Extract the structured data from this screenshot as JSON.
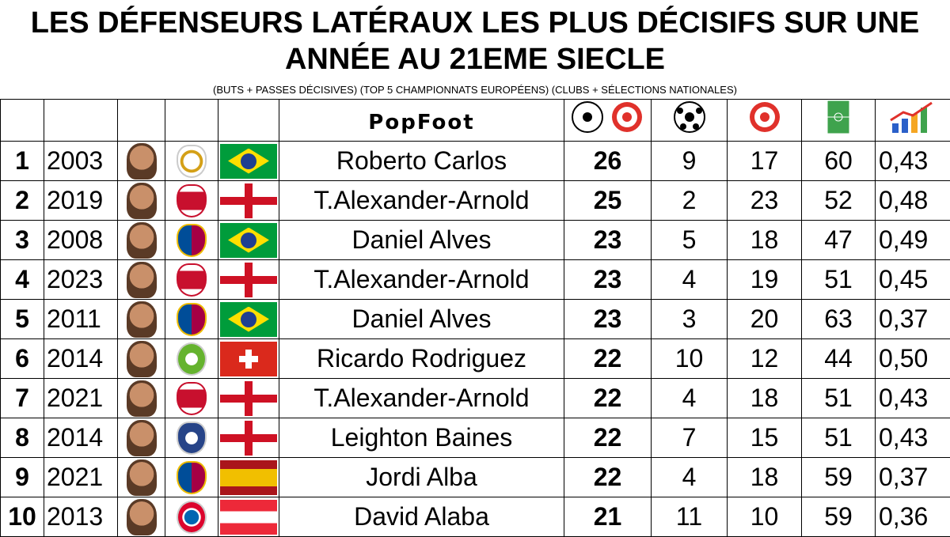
{
  "header": {
    "title": "LES DÉFENSEURS LATÉRAUX LES PLUS DÉCISIFS SUR UNE ANNÉE AU 21EME SIECLE",
    "subtitle": "(BUTS + PASSES DÉCISIVES) (TOP 5 CHAMPIONNATS EUROPÉENS) (CLUBS + SÉLECTIONS NATIONALES)",
    "brand": "PopFoot"
  },
  "table": {
    "rows": [
      [
        1,
        2003,
        "Roberto Carlos",
        26,
        9,
        17,
        60,
        "0,43"
      ],
      [
        2,
        2019,
        "T.Alexander-Arnold",
        25,
        2,
        23,
        52,
        "0,48"
      ],
      [
        3,
        2008,
        "Daniel Alves",
        23,
        5,
        18,
        47,
        "0,49"
      ],
      [
        4,
        2023,
        "T.Alexander-Arnold",
        23,
        4,
        19,
        51,
        "0,45"
      ],
      [
        5,
        2011,
        "Daniel Alves",
        23,
        3,
        20,
        63,
        "0,37"
      ],
      [
        6,
        2014,
        "Ricardo Rodriguez",
        22,
        10,
        12,
        44,
        "0,50"
      ],
      [
        7,
        2021,
        "T.Alexander-Arnold",
        22,
        4,
        18,
        51,
        "0,43"
      ],
      [
        8,
        2014,
        "Leighton Baines",
        22,
        7,
        15,
        51,
        "0,43"
      ],
      [
        9,
        2021,
        "Jordi Alba",
        22,
        4,
        18,
        59,
        "0,37"
      ],
      [
        10,
        2013,
        "David Alaba",
        21,
        11,
        10,
        59,
        "0,36"
      ]
    ]
  }
}
